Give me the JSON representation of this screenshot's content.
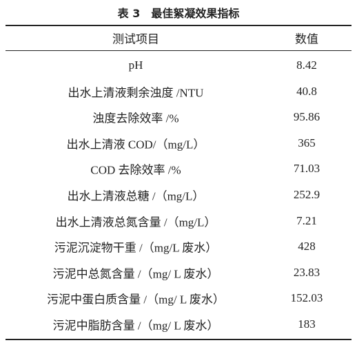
{
  "table": {
    "title": "表 3　最佳絮凝效果指标",
    "header": [
      "测试项目",
      "数值"
    ],
    "rows": [
      [
        "pH",
        "8.42"
      ],
      [
        "出水上清液剩余浊度 /NTU",
        "40.8"
      ],
      [
        "浊度去除效率 /%",
        "95.86"
      ],
      [
        "出水上清液 COD/（mg/L）",
        "365"
      ],
      [
        "COD 去除效率 /%",
        "71.03"
      ],
      [
        "出水上清液总糖 /（mg/L）",
        "252.9"
      ],
      [
        "出水上清液总氮含量 /（mg/L）",
        "7.21"
      ],
      [
        "污泥沉淀物干重 /（mg/L 废水）",
        "428"
      ],
      [
        "污泥中总氮含量 /（mg/ L 废水）",
        "23.83"
      ],
      [
        "污泥中蛋白质含量 /（mg/ L 废水）",
        "152.03"
      ],
      [
        "污泥中脂肪含量 /（mg/ L 废水）",
        "183"
      ]
    ]
  }
}
